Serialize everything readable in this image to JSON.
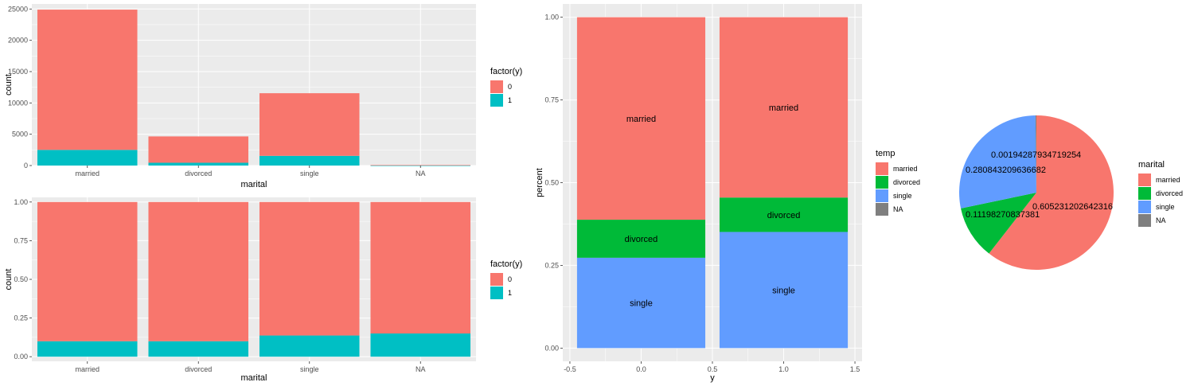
{
  "colors": {
    "y0": "#F8766D",
    "y1": "#00BFC4",
    "married": "#F8766D",
    "divorced": "#00BA38",
    "single": "#619CFF",
    "NA": "#7F7F7F",
    "panel_bg": "#EBEBEB",
    "grid": "#FFFFFF"
  },
  "chart_data": [
    {
      "id": "count-by-marital",
      "type": "bar",
      "stacked": true,
      "xlabel": "marital",
      "ylabel": "count",
      "categories": [
        "married",
        "divorced",
        "single",
        "NA"
      ],
      "series": [
        {
          "name": "0",
          "color_key": "y0",
          "values": [
            22400,
            4200,
            10000,
            70
          ]
        },
        {
          "name": "1",
          "color_key": "y1",
          "values": [
            2500,
            450,
            1550,
            10
          ]
        }
      ],
      "ylim": [
        0,
        25800
      ],
      "yticks": [
        0,
        5000,
        10000,
        15000,
        20000,
        25000
      ],
      "legend": {
        "title": "factor(y)",
        "entries": [
          "0",
          "1"
        ],
        "position": "right"
      },
      "grid": true
    },
    {
      "id": "proportion-by-marital",
      "type": "bar",
      "stacked": true,
      "xlabel": "marital",
      "ylabel": "count",
      "categories": [
        "married",
        "divorced",
        "single",
        "NA"
      ],
      "series": [
        {
          "name": "0",
          "color_key": "y0",
          "values": [
            0.9,
            0.9,
            0.863,
            0.85
          ]
        },
        {
          "name": "1",
          "color_key": "y1",
          "values": [
            0.1,
            0.1,
            0.137,
            0.15
          ]
        }
      ],
      "ylim": [
        -0.03,
        1.03
      ],
      "yticks": [
        "0.00",
        "0.25",
        "0.50",
        "0.75",
        "1.00"
      ],
      "legend": {
        "title": "factor(y)",
        "entries": [
          "0",
          "1"
        ],
        "position": "right"
      },
      "grid": true
    },
    {
      "id": "percent-by-y",
      "type": "bar",
      "stacked": true,
      "xlabel": "y",
      "ylabel": "percent",
      "x": [
        0,
        1
      ],
      "xlim": [
        -0.55,
        1.55
      ],
      "xticks": [
        "-0.5",
        "0.0",
        "0.5",
        "1.0",
        "1.5"
      ],
      "ylim": [
        -0.04,
        1.04
      ],
      "yticks": [
        "0.00",
        "0.25",
        "0.50",
        "0.75",
        "1.00"
      ],
      "series": [
        {
          "name": "single",
          "color_key": "single",
          "values": [
            0.273,
            0.351
          ],
          "label": "single"
        },
        {
          "name": "divorced",
          "color_key": "divorced",
          "values": [
            0.115,
            0.104
          ],
          "label": "divorced"
        },
        {
          "name": "married",
          "color_key": "married",
          "values": [
            0.612,
            0.545
          ],
          "label": "married"
        }
      ],
      "legend": {
        "title": "temp",
        "entries": [
          "married",
          "divorced",
          "single",
          "NA"
        ],
        "position": "right"
      },
      "grid": true
    },
    {
      "id": "marital-share-pie",
      "type": "pie",
      "slices": [
        {
          "label": "married",
          "color_key": "married",
          "value": 0.605231202642316,
          "text": "0.605231202642316"
        },
        {
          "label": "divorced",
          "color_key": "divorced",
          "value": 0.11198270837381,
          "text": "0.11198270837381"
        },
        {
          "label": "single",
          "color_key": "single",
          "value": 0.280843209636682,
          "text": "0.280843209636682"
        },
        {
          "label": "NA",
          "color_key": "NA",
          "value": 0.00194287934719254,
          "text": "0.00194287934719254"
        }
      ],
      "legend": {
        "title": "marital",
        "entries": [
          "married",
          "divorced",
          "single",
          "NA"
        ],
        "position": "right"
      }
    }
  ]
}
